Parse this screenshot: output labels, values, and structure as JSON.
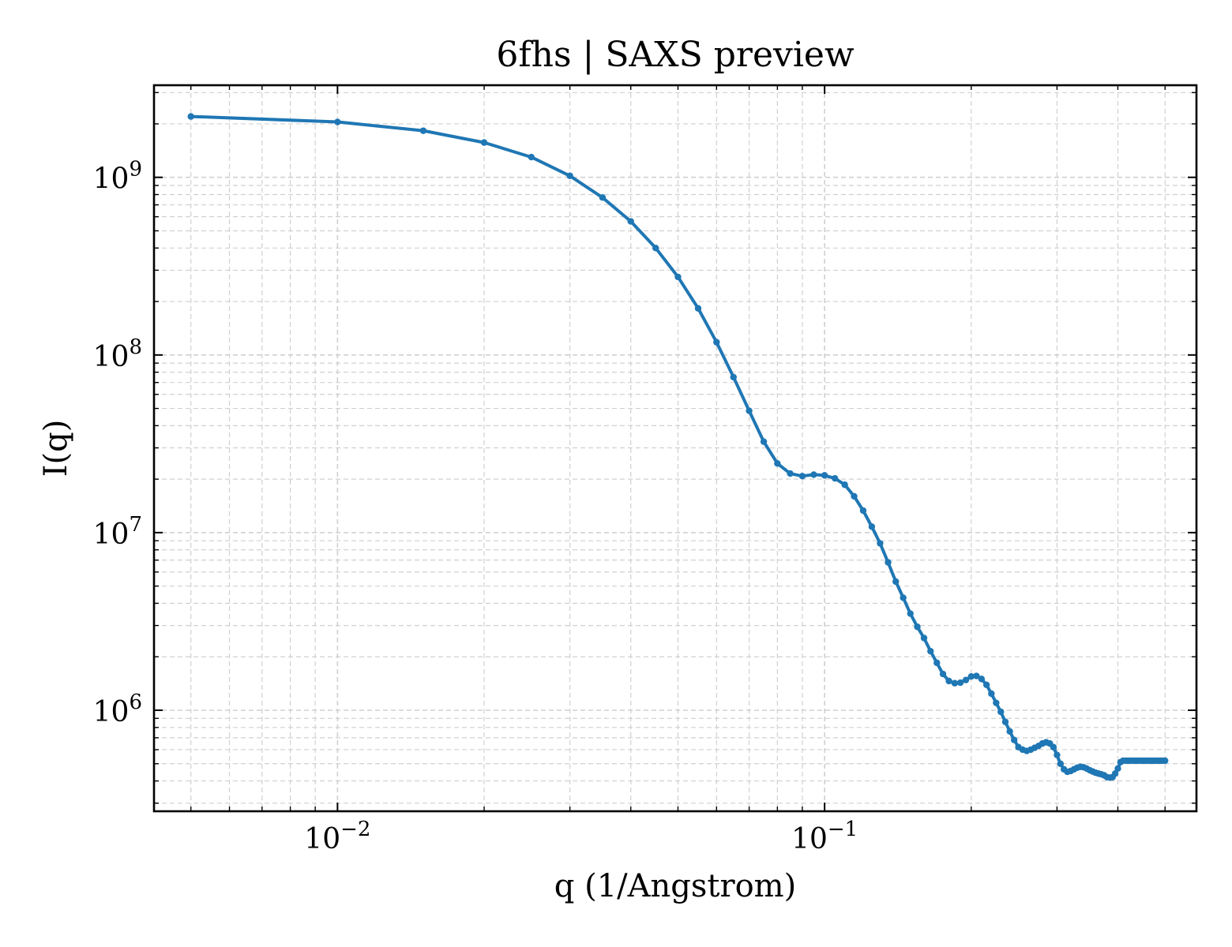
{
  "chart_data": {
    "type": "line",
    "title": "6fhs | SAXS preview",
    "xlabel": "q (1/Angstrom)",
    "ylabel": "I(q)",
    "x_scale": "log",
    "y_scale": "log",
    "xlim": [
      0.0042,
      0.58
    ],
    "ylim": [
      270000,
      3300000000
    ],
    "grid": true,
    "x_ticks": [
      {
        "value": 0.01,
        "base": "10",
        "exp": "−2"
      },
      {
        "value": 0.1,
        "base": "10",
        "exp": "−1"
      }
    ],
    "y_ticks": [
      {
        "value": 1000000,
        "base": "10",
        "exp": "6"
      },
      {
        "value": 10000000,
        "base": "10",
        "exp": "7"
      },
      {
        "value": 100000000,
        "base": "10",
        "exp": "8"
      },
      {
        "value": 1000000000,
        "base": "10",
        "exp": "9"
      }
    ],
    "series": [
      {
        "color": "#1f77b4",
        "x": [
          0.005,
          0.01,
          0.015,
          0.02,
          0.025,
          0.03,
          0.035,
          0.04,
          0.045,
          0.05,
          0.055,
          0.06,
          0.065,
          0.07,
          0.075,
          0.08,
          0.085,
          0.09,
          0.095,
          0.1,
          0.105,
          0.11,
          0.115,
          0.12,
          0.125,
          0.13,
          0.135,
          0.14,
          0.145,
          0.15,
          0.155,
          0.16,
          0.165,
          0.17,
          0.175,
          0.18,
          0.185,
          0.19,
          0.195,
          0.2,
          0.205,
          0.21,
          0.215,
          0.22,
          0.225,
          0.23,
          0.235,
          0.24,
          0.245,
          0.25,
          0.255,
          0.26,
          0.265,
          0.27,
          0.275,
          0.28,
          0.285,
          0.29,
          0.295,
          0.3,
          0.305,
          0.31,
          0.315,
          0.32,
          0.325,
          0.33,
          0.335,
          0.34,
          0.345,
          0.35,
          0.355,
          0.36,
          0.365,
          0.37,
          0.375,
          0.38,
          0.385,
          0.39,
          0.395,
          0.4,
          0.405,
          0.41,
          0.415,
          0.42,
          0.425,
          0.43,
          0.435,
          0.44,
          0.445,
          0.45,
          0.455,
          0.46,
          0.465,
          0.47,
          0.475,
          0.48,
          0.485,
          0.49,
          0.495,
          0.5
        ],
        "y": [
          2200000000,
          2050000000,
          1830000000,
          1570000000,
          1300000000,
          1020000000,
          770000000,
          565000000,
          400000000,
          275000000,
          183000000,
          118000000,
          75000000,
          48500000,
          32500000,
          24500000,
          21500000,
          20800000,
          21200000,
          21000000,
          20200000,
          18600000,
          16000000,
          13300000,
          10800000,
          8700000,
          6800000,
          5300000,
          4300000,
          3500000,
          2950000,
          2550000,
          2150000,
          1850000,
          1600000,
          1460000,
          1420000,
          1430000,
          1480000,
          1550000,
          1560000,
          1500000,
          1390000,
          1240000,
          1100000,
          980000,
          860000,
          760000,
          680000,
          620000,
          600000,
          590000,
          600000,
          615000,
          630000,
          650000,
          660000,
          650000,
          620000,
          560000,
          500000,
          465000,
          450000,
          455000,
          465000,
          475000,
          480000,
          478000,
          470000,
          460000,
          452000,
          445000,
          440000,
          436000,
          430000,
          420000,
          418000,
          420000,
          440000,
          470000,
          510000,
          520000,
          520000,
          520000,
          520000,
          520000,
          520000,
          520000,
          520000,
          520000,
          520000,
          520000,
          520000,
          520000,
          520000,
          520000,
          520000,
          520000,
          520000,
          520000
        ]
      }
    ]
  }
}
